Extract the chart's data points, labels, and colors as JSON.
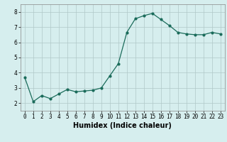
{
  "x": [
    0,
    1,
    2,
    3,
    4,
    5,
    6,
    7,
    8,
    9,
    10,
    11,
    12,
    13,
    14,
    15,
    16,
    17,
    18,
    19,
    20,
    21,
    22,
    23
  ],
  "y": [
    3.7,
    2.1,
    2.5,
    2.3,
    2.6,
    2.9,
    2.75,
    2.8,
    2.85,
    3.0,
    3.8,
    4.6,
    6.65,
    7.55,
    7.75,
    7.9,
    7.5,
    7.1,
    6.65,
    6.55,
    6.5,
    6.5,
    6.65,
    6.55
  ],
  "line_color": "#1a6b5a",
  "marker": "o",
  "marker_size": 2,
  "bg_color": "#d6eeee",
  "grid_color": "#b0c8c8",
  "xlabel": "Humidex (Indice chaleur)",
  "ylim": [
    1.5,
    8.5
  ],
  "xlim": [
    -0.5,
    23.5
  ],
  "yticks": [
    2,
    3,
    4,
    5,
    6,
    7,
    8
  ],
  "xticks": [
    0,
    1,
    2,
    3,
    4,
    5,
    6,
    7,
    8,
    9,
    10,
    11,
    12,
    13,
    14,
    15,
    16,
    17,
    18,
    19,
    20,
    21,
    22,
    23
  ],
  "tick_fontsize": 5.5,
  "xlabel_fontsize": 7
}
